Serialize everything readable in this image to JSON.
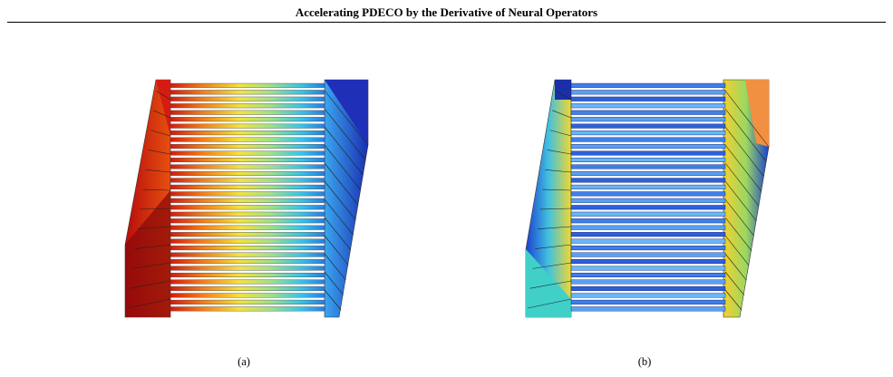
{
  "header": {
    "running_title": "Accelerating PDECO by the Derivative of Neural Operators"
  },
  "figure": {
    "panels": [
      {
        "caption": "(a)",
        "colormap": "jet",
        "description_color_low": "#1d3fd0",
        "description_color_high": "#c01010"
      },
      {
        "caption": "(b)",
        "colormap": "jet",
        "description_color_low": "#1a3fcc",
        "description_color_high": "#e83a10"
      }
    ]
  }
}
